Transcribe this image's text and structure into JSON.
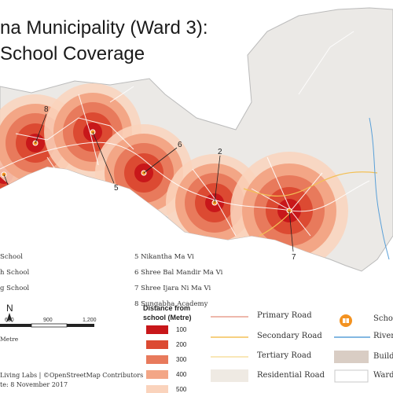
{
  "title": {
    "line1": "na Municipality (Ward 3):",
    "line2": "School Coverage"
  },
  "schools": {
    "left": [
      "School",
      "h School",
      "g School"
    ],
    "right": [
      "5   Nikantha Ma Vi",
      "6   Shree Bal Mandir Ma Vi",
      "7   Shree Ijara Ni Ma Vi",
      "8   Sungabha Academy"
    ]
  },
  "markers": [
    "8",
    "6",
    "5",
    "2",
    "7"
  ],
  "north_label": "N",
  "scale": {
    "ticks": [
      "600",
      "900",
      "1,200"
    ],
    "unit": "Metre"
  },
  "credits": [
    "Living Labs | ©OpenStreetMap Contributors",
    "te: 8 November 2017"
  ],
  "distance_legend": {
    "title": "Distance from school (Metre)",
    "classes": [
      {
        "label": "100",
        "color": "#c8171a"
      },
      {
        "label": "200",
        "color": "#dc4a32"
      },
      {
        "label": "300",
        "color": "#e87a5c"
      },
      {
        "label": "400",
        "color": "#f3a686"
      },
      {
        "label": "500",
        "color": "#fad3bc"
      }
    ]
  },
  "road_legend": [
    {
      "label": "Primary Road",
      "color": "#e8a090"
    },
    {
      "label": "Secondary Road",
      "color": "#f3c056"
    },
    {
      "label": "Tertiary Road",
      "color": "#f7dfa0"
    },
    {
      "label": "Residential Road",
      "color": "#efeae3"
    }
  ],
  "other_legend": [
    {
      "label": "Scho",
      "color": "#f39220"
    },
    {
      "label": "River",
      "color": "#5aa0d8"
    },
    {
      "label": "Build",
      "color": "#d9cdc4"
    },
    {
      "label": "Ward",
      "color": "#c8c8c8"
    }
  ],
  "map_colors": {
    "ward": "#ebe9e6",
    "ward_outline": "#bbbbbb",
    "road": "#ffffff",
    "river": "#5aa0d8"
  }
}
